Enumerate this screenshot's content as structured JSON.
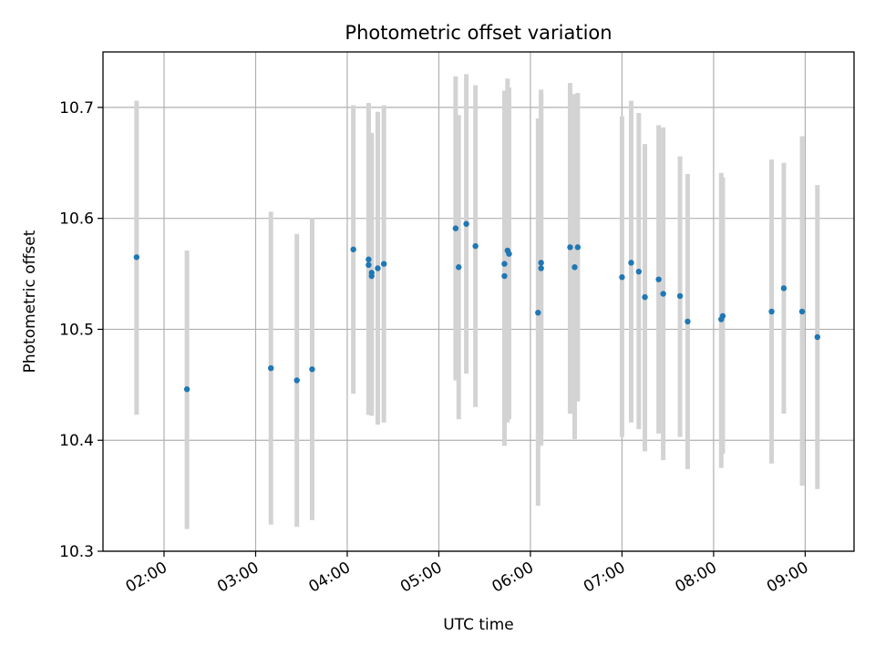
{
  "chart_data": {
    "type": "scatter",
    "title": "Photometric offset variation",
    "xlabel": "UTC time",
    "ylabel": "Photometric offset",
    "xlim": [
      "01:20",
      "09:32"
    ],
    "ylim": [
      10.3,
      10.75
    ],
    "grid": true,
    "x_ticks": [
      "02:00",
      "03:00",
      "04:00",
      "05:00",
      "06:00",
      "07:00",
      "08:00",
      "09:00"
    ],
    "y_ticks": [
      "10.3",
      "10.4",
      "10.5",
      "10.6",
      "10.7"
    ],
    "colors": {
      "point": "#1f77b4",
      "errorbar": "#d3d3d3",
      "grid": "#b0b0b0",
      "axes": "#000000"
    },
    "series": [
      {
        "points": [
          {
            "x": "01:42",
            "y": 10.565,
            "err": [
              10.423,
              10.706
            ]
          },
          {
            "x": "02:15",
            "y": 10.446,
            "err": [
              10.32,
              10.571
            ]
          },
          {
            "x": "03:10",
            "y": 10.465,
            "err": [
              10.324,
              10.606
            ]
          },
          {
            "x": "03:27",
            "y": 10.454,
            "err": [
              10.322,
              10.586
            ]
          },
          {
            "x": "03:37",
            "y": 10.464,
            "err": [
              10.328,
              10.6
            ]
          },
          {
            "x": "04:04",
            "y": 10.572,
            "err": [
              10.442,
              10.702
            ]
          },
          {
            "x": "04:14",
            "y": 10.563,
            "err": [
              10.423,
              10.704
            ]
          },
          {
            "x": "04:14",
            "y": 10.558,
            "err": [
              10.423,
              10.702
            ]
          },
          {
            "x": "04:16",
            "y": 10.551,
            "err": [
              10.425,
              10.677
            ]
          },
          {
            "x": "04:16",
            "y": 10.548,
            "err": [
              10.422,
              10.674
            ]
          },
          {
            "x": "04:20",
            "y": 10.555,
            "err": [
              10.414,
              10.696
            ]
          },
          {
            "x": "04:24",
            "y": 10.559,
            "err": [
              10.416,
              10.702
            ]
          },
          {
            "x": "05:11",
            "y": 10.591,
            "err": [
              10.454,
              10.728
            ]
          },
          {
            "x": "05:13",
            "y": 10.556,
            "err": [
              10.419,
              10.693
            ]
          },
          {
            "x": "05:18",
            "y": 10.595,
            "err": [
              10.46,
              10.73
            ]
          },
          {
            "x": "05:24",
            "y": 10.575,
            "err": [
              10.43,
              10.72
            ]
          },
          {
            "x": "05:43",
            "y": 10.559,
            "err": [
              10.41,
              10.715
            ]
          },
          {
            "x": "05:43",
            "y": 10.548,
            "err": [
              10.395,
              10.715
            ]
          },
          {
            "x": "05:45",
            "y": 10.571,
            "err": [
              10.416,
              10.726
            ]
          },
          {
            "x": "05:46",
            "y": 10.568,
            "err": [
              10.419,
              10.718
            ]
          },
          {
            "x": "06:05",
            "y": 10.515,
            "err": [
              10.341,
              10.69
            ]
          },
          {
            "x": "06:07",
            "y": 10.56,
            "err": [
              10.405,
              10.716
            ]
          },
          {
            "x": "06:07",
            "y": 10.555,
            "err": [
              10.395,
              10.712
            ]
          },
          {
            "x": "06:26",
            "y": 10.574,
            "err": [
              10.424,
              10.722
            ]
          },
          {
            "x": "06:29",
            "y": 10.556,
            "err": [
              10.401,
              10.712
            ]
          },
          {
            "x": "06:31",
            "y": 10.574,
            "err": [
              10.435,
              10.713
            ]
          },
          {
            "x": "07:00",
            "y": 10.547,
            "err": [
              10.403,
              10.692
            ]
          },
          {
            "x": "07:06",
            "y": 10.56,
            "err": [
              10.416,
              10.706
            ]
          },
          {
            "x": "07:11",
            "y": 10.552,
            "err": [
              10.41,
              10.695
            ]
          },
          {
            "x": "07:15",
            "y": 10.529,
            "err": [
              10.39,
              10.667
            ]
          },
          {
            "x": "07:24",
            "y": 10.545,
            "err": [
              10.406,
              10.684
            ]
          },
          {
            "x": "07:27",
            "y": 10.532,
            "err": [
              10.382,
              10.682
            ]
          },
          {
            "x": "07:38",
            "y": 10.53,
            "err": [
              10.403,
              10.656
            ]
          },
          {
            "x": "07:43",
            "y": 10.507,
            "err": [
              10.374,
              10.64
            ]
          },
          {
            "x": "08:05",
            "y": 10.509,
            "err": [
              10.375,
              10.641
            ]
          },
          {
            "x": "08:06",
            "y": 10.512,
            "err": [
              10.388,
              10.637
            ]
          },
          {
            "x": "08:38",
            "y": 10.516,
            "err": [
              10.379,
              10.653
            ]
          },
          {
            "x": "08:46",
            "y": 10.537,
            "err": [
              10.424,
              10.65
            ]
          },
          {
            "x": "08:58",
            "y": 10.516,
            "err": [
              10.359,
              10.674
            ]
          },
          {
            "x": "09:08",
            "y": 10.493,
            "err": [
              10.356,
              10.63
            ]
          }
        ]
      }
    ]
  }
}
